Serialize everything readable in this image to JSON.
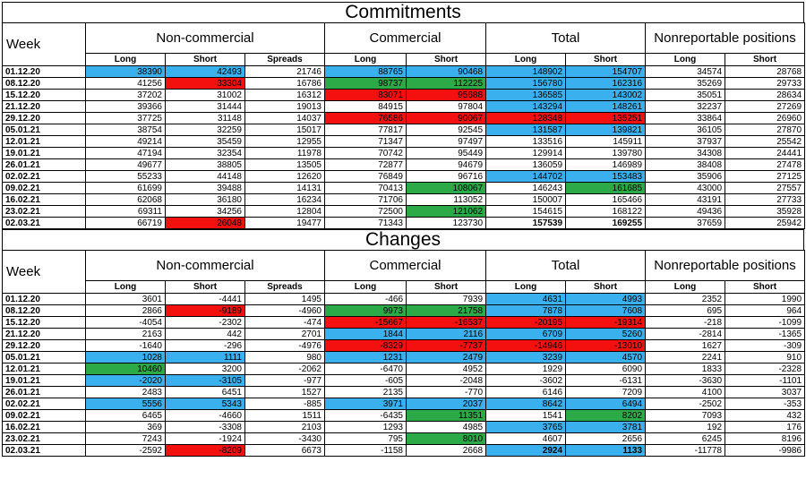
{
  "commitments": {
    "title": "Commitments",
    "headers": {
      "week": "Week",
      "noncommercial": "Non-commercial",
      "commercial": "Commercial",
      "total": "Total",
      "nonreportable": "Nonreportable positions",
      "long": "Long",
      "short": "Short",
      "spreads": "Spreads"
    },
    "rows": [
      {
        "week": "01.12.20",
        "vals": [
          "38390",
          "42493",
          "21746",
          "88765",
          "90468",
          "148902",
          "154707",
          "34574",
          "28768"
        ],
        "colors": [
          "blue",
          "blue",
          "",
          "blue",
          "blue",
          "blue",
          "blue",
          "",
          ""
        ]
      },
      {
        "week": "08.12.20",
        "vals": [
          "41256",
          "33304",
          "16786",
          "98737",
          "112225",
          "156780",
          "162316",
          "35269",
          "29733"
        ],
        "colors": [
          "",
          "red",
          "",
          "green",
          "green",
          "blue",
          "blue",
          "",
          ""
        ]
      },
      {
        "week": "15.12.20",
        "vals": [
          "37202",
          "31002",
          "16312",
          "83071",
          "95688",
          "136585",
          "143002",
          "35051",
          "28634"
        ],
        "colors": [
          "",
          "",
          "",
          "red",
          "red",
          "blue",
          "blue",
          "",
          ""
        ]
      },
      {
        "week": "21.12.20",
        "vals": [
          "39366",
          "31444",
          "19013",
          "84915",
          "97804",
          "143294",
          "148261",
          "32237",
          "27269"
        ],
        "colors": [
          "",
          "",
          "",
          "",
          "",
          "blue",
          "blue",
          "",
          ""
        ]
      },
      {
        "week": "29.12.20",
        "vals": [
          "37725",
          "31148",
          "14037",
          "76586",
          "90067",
          "128348",
          "135251",
          "33864",
          "26960"
        ],
        "colors": [
          "",
          "",
          "",
          "red",
          "red",
          "red",
          "red",
          "",
          ""
        ]
      },
      {
        "week": "05.01.21",
        "vals": [
          "38754",
          "32259",
          "15017",
          "77817",
          "92545",
          "131587",
          "139821",
          "36105",
          "27870"
        ],
        "colors": [
          "",
          "",
          "",
          "",
          "",
          "blue",
          "blue",
          "",
          ""
        ]
      },
      {
        "week": "12.01.21",
        "vals": [
          "49214",
          "35459",
          "12955",
          "71347",
          "97497",
          "133516",
          "145911",
          "37937",
          "25542"
        ],
        "colors": [
          "",
          "",
          "",
          "",
          "",
          "",
          "",
          "",
          ""
        ]
      },
      {
        "week": "19.01.21",
        "vals": [
          "47194",
          "32354",
          "11978",
          "70742",
          "95449",
          "129914",
          "139780",
          "34308",
          "24441"
        ],
        "colors": [
          "",
          "",
          "",
          "",
          "",
          "",
          "",
          "",
          ""
        ]
      },
      {
        "week": "26.01.21",
        "vals": [
          "49677",
          "38805",
          "13505",
          "72877",
          "94679",
          "136059",
          "146989",
          "38408",
          "27478"
        ],
        "colors": [
          "",
          "",
          "",
          "",
          "",
          "",
          "",
          "",
          ""
        ]
      },
      {
        "week": "02.02.21",
        "vals": [
          "55233",
          "44148",
          "12620",
          "76849",
          "96716",
          "144702",
          "153483",
          "35906",
          "27125"
        ],
        "colors": [
          "",
          "",
          "",
          "",
          "",
          "blue",
          "blue",
          "",
          ""
        ]
      },
      {
        "week": "09.02.21",
        "vals": [
          "61699",
          "39488",
          "14131",
          "70413",
          "108067",
          "146243",
          "161685",
          "43000",
          "27557"
        ],
        "colors": [
          "",
          "",
          "",
          "",
          "green",
          "",
          "green",
          "",
          ""
        ]
      },
      {
        "week": "16.02.21",
        "vals": [
          "62068",
          "36180",
          "16234",
          "71706",
          "113052",
          "150007",
          "165466",
          "43191",
          "27733"
        ],
        "colors": [
          "",
          "",
          "",
          "",
          "",
          "",
          "",
          "",
          ""
        ]
      },
      {
        "week": "23.02.21",
        "vals": [
          "69311",
          "34256",
          "12804",
          "72500",
          "121062",
          "154615",
          "168122",
          "49436",
          "35928"
        ],
        "colors": [
          "",
          "",
          "",
          "",
          "green",
          "",
          "",
          "",
          ""
        ]
      },
      {
        "week": "02.03.21",
        "vals": [
          "66719",
          "26048",
          "19477",
          "71343",
          "123730",
          "157539",
          "169255",
          "37659",
          "25942"
        ],
        "colors": [
          "",
          "red",
          "",
          "",
          "",
          "",
          "",
          "",
          ""
        ],
        "bold": [
          false,
          false,
          false,
          false,
          false,
          true,
          true,
          false,
          false
        ]
      }
    ]
  },
  "changes": {
    "title": "Changes",
    "rows": [
      {
        "week": "01.12.20",
        "vals": [
          "3601",
          "-4441",
          "1495",
          "-466",
          "7939",
          "4631",
          "4993",
          "2352",
          "1990"
        ],
        "colors": [
          "",
          "",
          "",
          "",
          "",
          "blue",
          "blue",
          "",
          ""
        ]
      },
      {
        "week": "08.12.20",
        "vals": [
          "2866",
          "-9189",
          "-4960",
          "9973",
          "21758",
          "7878",
          "7608",
          "695",
          "964"
        ],
        "colors": [
          "",
          "red",
          "",
          "green",
          "green",
          "blue",
          "blue",
          "",
          ""
        ]
      },
      {
        "week": "15.12.20",
        "vals": [
          "-4054",
          "-2302",
          "-474",
          "-15667",
          "-16537",
          "-20195",
          "-19314",
          "-218",
          "-1099"
        ],
        "colors": [
          "",
          "",
          "",
          "red",
          "red",
          "red",
          "red",
          "",
          ""
        ]
      },
      {
        "week": "21.12.20",
        "vals": [
          "2163",
          "442",
          "2701",
          "1844",
          "2116",
          "6709",
          "5260",
          "-2814",
          "-1365"
        ],
        "colors": [
          "",
          "",
          "",
          "blue",
          "blue",
          "blue",
          "blue",
          "",
          ""
        ]
      },
      {
        "week": "29.12.20",
        "vals": [
          "-1640",
          "-296",
          "-4976",
          "-8329",
          "-7737",
          "-14946",
          "-13010",
          "1627",
          "-309"
        ],
        "colors": [
          "",
          "",
          "",
          "red",
          "red",
          "red",
          "red",
          "",
          ""
        ]
      },
      {
        "week": "05.01.21",
        "vals": [
          "1028",
          "1111",
          "980",
          "1231",
          "2479",
          "3239",
          "4570",
          "2241",
          "910"
        ],
        "colors": [
          "blue",
          "blue",
          "",
          "blue",
          "blue",
          "blue",
          "blue",
          "",
          ""
        ]
      },
      {
        "week": "12.01.21",
        "vals": [
          "10460",
          "3200",
          "-2062",
          "-6470",
          "4952",
          "1929",
          "6090",
          "1833",
          "-2328"
        ],
        "colors": [
          "green",
          "",
          "",
          "",
          "",
          "",
          "",
          "",
          ""
        ]
      },
      {
        "week": "19.01.21",
        "vals": [
          "-2020",
          "-3105",
          "-977",
          "-605",
          "-2048",
          "-3602",
          "-6131",
          "-3630",
          "-1101"
        ],
        "colors": [
          "blue",
          "blue",
          "",
          "",
          "",
          "",
          "",
          "",
          ""
        ]
      },
      {
        "week": "26.01.21",
        "vals": [
          "2483",
          "6451",
          "1527",
          "2135",
          "-770",
          "6146",
          "7209",
          "4100",
          "3037"
        ],
        "colors": [
          "",
          "",
          "",
          "",
          "",
          "",
          "",
          "",
          ""
        ]
      },
      {
        "week": "02.02.21",
        "vals": [
          "5556",
          "5343",
          "-885",
          "3971",
          "2037",
          "8642",
          "6494",
          "-2502",
          "-353"
        ],
        "colors": [
          "blue",
          "blue",
          "",
          "blue",
          "blue",
          "blue",
          "blue",
          "",
          ""
        ]
      },
      {
        "week": "09.02.21",
        "vals": [
          "6465",
          "-4660",
          "1511",
          "-6435",
          "11351",
          "1541",
          "8202",
          "7093",
          "432"
        ],
        "colors": [
          "",
          "",
          "",
          "",
          "green",
          "",
          "green",
          "",
          ""
        ]
      },
      {
        "week": "16.02.21",
        "vals": [
          "369",
          "-3308",
          "2103",
          "1293",
          "4985",
          "3765",
          "3781",
          "192",
          "176"
        ],
        "colors": [
          "",
          "",
          "",
          "",
          "",
          "blue",
          "blue",
          "",
          ""
        ]
      },
      {
        "week": "23.02.21",
        "vals": [
          "7243",
          "-1924",
          "-3430",
          "795",
          "8010",
          "4607",
          "2656",
          "6245",
          "8196"
        ],
        "colors": [
          "",
          "",
          "",
          "",
          "green",
          "",
          "",
          "",
          ""
        ]
      },
      {
        "week": "02.03.21",
        "vals": [
          "-2592",
          "-8209",
          "6673",
          "-1158",
          "2668",
          "2924",
          "1133",
          "-11778",
          "-9986"
        ],
        "colors": [
          "",
          "red",
          "",
          "",
          "",
          "blue",
          "blue",
          "",
          ""
        ],
        "bold": [
          false,
          false,
          false,
          false,
          false,
          true,
          true,
          false,
          false
        ]
      }
    ]
  }
}
